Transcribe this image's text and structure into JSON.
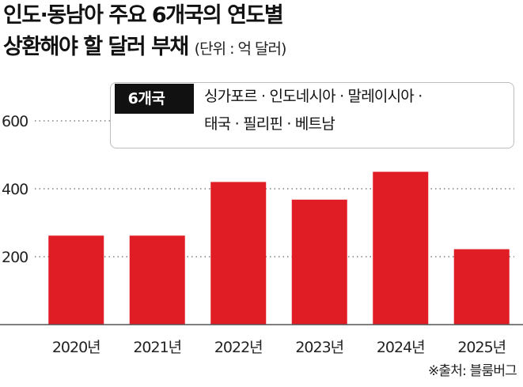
{
  "header": {
    "title_line1": "인도·동남아 주요 6개국의 연도별",
    "title_line2": "상환해야 할 달러 부채",
    "unit": "(단위 : 억 달러)"
  },
  "legend": {
    "badge": "6개국",
    "line1": "싱가포르 · 인도네시아 · 말레이시아 ·",
    "line2": "태국 · 필리핀 · 베트남"
  },
  "chart_data": {
    "type": "bar",
    "title": "인도·동남아 주요 6개국의 연도별 상환해야 할 달러 부채",
    "unit": "(단위 : 억 달러)",
    "categories": [
      "2020년",
      "2021년",
      "2022년",
      "2023년",
      "2024년",
      "2025년"
    ],
    "values": [
      262,
      262,
      420,
      368,
      450,
      222
    ],
    "ylim": [
      0,
      600
    ],
    "yticks": [
      200,
      400,
      600
    ],
    "grid": true,
    "bar_color": "#e01d24"
  },
  "source": "※출처: 블룸버그"
}
